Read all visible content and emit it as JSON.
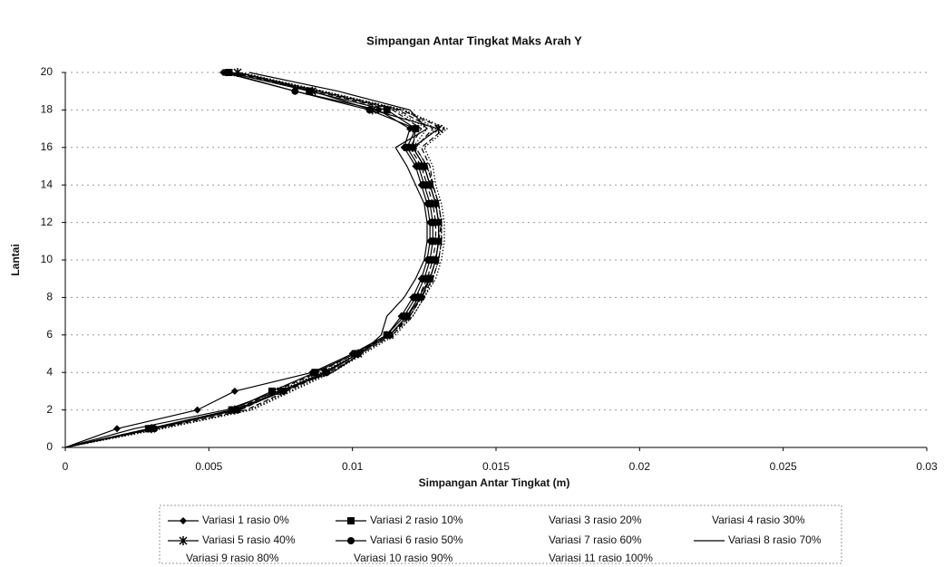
{
  "chart_data": {
    "type": "line",
    "title": "Simpangan Antar Tingkat Maks Arah Y",
    "x_label": "Simpangan Antar Tingkat (m)",
    "y_label": "Lantai",
    "y": [
      0,
      1,
      2,
      3,
      4,
      5,
      6,
      7,
      8,
      9,
      10,
      11,
      12,
      13,
      14,
      15,
      16,
      17,
      18,
      19,
      20
    ],
    "xlim": [
      0,
      0.03
    ],
    "xticks": [
      0,
      0.005,
      0.01,
      0.015,
      0.02,
      0.025,
      0.03
    ],
    "ylim": [
      0,
      20
    ],
    "yticks": [
      0,
      2,
      4,
      6,
      8,
      10,
      12,
      14,
      16,
      18,
      20
    ],
    "grid": true,
    "legend": "bottom",
    "series": [
      {
        "name": "Variasi 1 rasio 0%",
        "color": "#000000",
        "marker": "diamond",
        "dash": "solid",
        "values": [
          0,
          0.0018,
          0.0046,
          0.0059,
          0.0086,
          0.01,
          0.0112,
          0.0117,
          0.0121,
          0.0124,
          0.0126,
          0.0127,
          0.0127,
          0.0126,
          0.0124,
          0.0122,
          0.0118,
          0.012,
          0.0109,
          0.008,
          0.0055
        ]
      },
      {
        "name": "Variasi 2 rasio 10%",
        "color": "#000000",
        "marker": "square",
        "dash": "solid",
        "values": [
          0,
          0.0029,
          0.0058,
          0.0072,
          0.0087,
          0.0101,
          0.0112,
          0.0118,
          0.0122,
          0.0125,
          0.0127,
          0.0128,
          0.0128,
          0.0127,
          0.0125,
          0.0123,
          0.0119,
          0.0122,
          0.0112,
          0.0085,
          0.0057
        ]
      },
      {
        "name": "Variasi 3 rasio 20%",
        "color": "#000000",
        "marker": "none",
        "dash": "dashed",
        "values": [
          0,
          0.003,
          0.0059,
          0.0073,
          0.0088,
          0.0101,
          0.0113,
          0.0119,
          0.0123,
          0.0126,
          0.0128,
          0.0129,
          0.0129,
          0.0128,
          0.0126,
          0.0124,
          0.012,
          0.0124,
          0.0114,
          0.0087,
          0.0058
        ]
      },
      {
        "name": "Variasi 4 rasio 30%",
        "color": "#000000",
        "marker": "none",
        "dash": "dotted",
        "values": [
          0,
          0.003,
          0.006,
          0.0074,
          0.0089,
          0.0102,
          0.0113,
          0.012,
          0.0124,
          0.0127,
          0.0129,
          0.013,
          0.013,
          0.0129,
          0.0127,
          0.0125,
          0.0121,
          0.0126,
          0.0115,
          0.0088,
          0.0059
        ]
      },
      {
        "name": "Variasi 5 rasio 40%",
        "color": "#000000",
        "marker": "star",
        "dash": "solid",
        "values": [
          0,
          0.003,
          0.0059,
          0.0075,
          0.009,
          0.0102,
          0.0113,
          0.0119,
          0.0123,
          0.0127,
          0.0129,
          0.013,
          0.013,
          0.0129,
          0.0127,
          0.0125,
          0.0121,
          0.013,
          0.0107,
          0.0086,
          0.006
        ]
      },
      {
        "name": "Variasi 6 rasio 50%",
        "color": "#000000",
        "marker": "circle",
        "dash": "solid",
        "values": [
          0,
          0.0031,
          0.006,
          0.0076,
          0.0091,
          0.0102,
          0.0113,
          0.0119,
          0.0124,
          0.0127,
          0.0129,
          0.013,
          0.013,
          0.0129,
          0.0127,
          0.0125,
          0.0121,
          0.0122,
          0.0106,
          0.008,
          0.0056
        ]
      },
      {
        "name": "Variasi 7 rasio 60%",
        "color": "#000000",
        "marker": "none",
        "dash": "dashed",
        "values": [
          0,
          0.0029,
          0.0061,
          0.0075,
          0.0092,
          0.0103,
          0.0114,
          0.012,
          0.0124,
          0.0128,
          0.013,
          0.0131,
          0.0131,
          0.013,
          0.0128,
          0.0126,
          0.0122,
          0.0128,
          0.0116,
          0.0088,
          0.006
        ]
      },
      {
        "name": "Variasi 8 rasio 70%",
        "color": "#000000",
        "marker": "none",
        "dash": "solid",
        "values": [
          0,
          0.0024,
          0.0056,
          0.0074,
          0.0093,
          0.0103,
          0.011,
          0.0112,
          0.0118,
          0.0122,
          0.0125,
          0.0126,
          0.0126,
          0.0125,
          0.0122,
          0.0119,
          0.0115,
          0.0126,
          0.012,
          0.0095,
          0.0064
        ]
      },
      {
        "name": "Variasi 9 rasio 80%",
        "color": "#000000",
        "marker": "none",
        "dash": "dotted",
        "values": [
          0,
          0.0033,
          0.0064,
          0.0078,
          0.0092,
          0.0103,
          0.0114,
          0.0121,
          0.0125,
          0.0128,
          0.013,
          0.0131,
          0.0131,
          0.013,
          0.0128,
          0.0126,
          0.0122,
          0.0129,
          0.0118,
          0.009,
          0.0061
        ]
      },
      {
        "name": "Variasi 10 rasio 90%",
        "color": "#000000",
        "marker": "none",
        "dash": "dashed",
        "values": [
          0,
          0.0032,
          0.0063,
          0.0077,
          0.0091,
          0.0102,
          0.0113,
          0.012,
          0.0124,
          0.0127,
          0.0129,
          0.013,
          0.0131,
          0.013,
          0.0128,
          0.0127,
          0.0124,
          0.0132,
          0.0117,
          0.0089,
          0.006
        ]
      },
      {
        "name": "Variasi 11 rasio 100%",
        "color": "#000000",
        "marker": "none",
        "dash": "dotted",
        "values": [
          0,
          0.0034,
          0.0065,
          0.0079,
          0.0093,
          0.0104,
          0.0115,
          0.0121,
          0.0125,
          0.0129,
          0.0131,
          0.0132,
          0.0132,
          0.0131,
          0.0129,
          0.0128,
          0.0125,
          0.0133,
          0.0118,
          0.009,
          0.0061
        ]
      }
    ]
  }
}
